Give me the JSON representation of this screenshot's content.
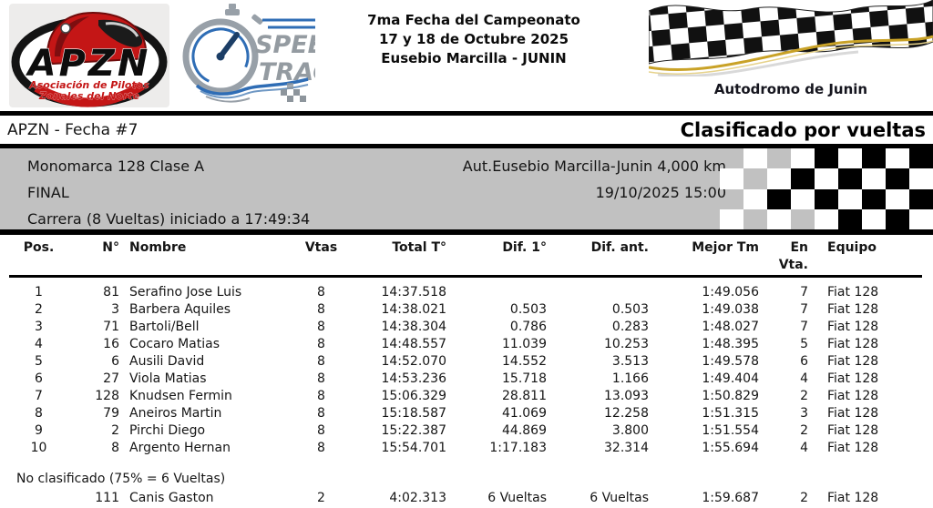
{
  "colors": {
    "banner-bg": "#c1c1c1",
    "accent-red": "#c41616",
    "gold": "#c9a227",
    "logo-blue": "#2f6db5",
    "steel-gray": "#98a0a8"
  },
  "header": {
    "apzn_logo": {
      "acronym": "APZN",
      "line1": "Asociación de Pilotos",
      "line2": "Zonales del Norte"
    },
    "speedtrack_logo": {
      "line1": "SPEED",
      "line2": "TRACK"
    },
    "event": {
      "line1": "7ma Fecha del Campeonato",
      "line2": "17 y 18 de Octubre 2025",
      "line3": "Eusebio Marcilla - JUNIN"
    },
    "venue": "Autodromo de Junin"
  },
  "title_bar": {
    "left": "APZN - Fecha #7",
    "right": "Clasificado por vueltas"
  },
  "banner": {
    "category": "Monomarca 128 Clase A",
    "track": "Aut.Eusebio Marcilla-Junin 4,000 km",
    "session": "FINAL",
    "datetime": "19/10/2025 15:00",
    "race_info": "Carrera (8 Vueltas) iniciado a 17:49:34",
    "checker_grid": [
      [
        "g",
        "w",
        "g",
        "w",
        "b",
        "w",
        "b",
        "w",
        "b"
      ],
      [
        "w",
        "g",
        "w",
        "b",
        "w",
        "b",
        "w",
        "b",
        "w"
      ],
      [
        "g",
        "w",
        "b",
        "w",
        "b",
        "w",
        "b",
        "w",
        "b"
      ],
      [
        "w",
        "g",
        "w",
        "g",
        "w",
        "b",
        "w",
        "b",
        "w"
      ]
    ]
  },
  "table": {
    "columns": [
      "Pos.",
      "N°",
      "Nombre",
      "Vtas",
      "Total T°",
      "Dif. 1°",
      "Dif. ant.",
      "Mejor Tm",
      "En Vta.",
      "Equipo"
    ],
    "rows": [
      [
        "1",
        "81",
        "Serafino Jose Luis",
        "8",
        "14:37.518",
        "",
        "",
        "1:49.056",
        "7",
        "Fiat 128"
      ],
      [
        "2",
        "3",
        "Barbera Aquiles",
        "8",
        "14:38.021",
        "0.503",
        "0.503",
        "1:49.038",
        "7",
        "Fiat 128"
      ],
      [
        "3",
        "71",
        "Bartoli/Bell",
        "8",
        "14:38.304",
        "0.786",
        "0.283",
        "1:48.027",
        "7",
        "Fiat 128"
      ],
      [
        "4",
        "16",
        "Cocaro Matias",
        "8",
        "14:48.557",
        "11.039",
        "10.253",
        "1:48.395",
        "5",
        "Fiat 128"
      ],
      [
        "5",
        "6",
        "Ausili David",
        "8",
        "14:52.070",
        "14.552",
        "3.513",
        "1:49.578",
        "6",
        "Fiat 128"
      ],
      [
        "6",
        "27",
        "Viola Matias",
        "8",
        "14:53.236",
        "15.718",
        "1.166",
        "1:49.404",
        "4",
        "Fiat 128"
      ],
      [
        "7",
        "128",
        "Knudsen Fermin",
        "8",
        "15:06.329",
        "28.811",
        "13.093",
        "1:50.829",
        "2",
        "Fiat 128"
      ],
      [
        "8",
        "79",
        "Aneiros Martin",
        "8",
        "15:18.587",
        "41.069",
        "12.258",
        "1:51.315",
        "3",
        "Fiat 128"
      ],
      [
        "9",
        "2",
        "Pirchi Diego",
        "8",
        "15:22.387",
        "44.869",
        "3.800",
        "1:51.554",
        "2",
        "Fiat 128"
      ],
      [
        "10",
        "8",
        "Argento Hernan",
        "8",
        "15:54.701",
        "1:17.183",
        "32.314",
        "1:55.694",
        "4",
        "Fiat 128"
      ]
    ],
    "nc_label": "No clasificado (75% = 6 Vueltas)",
    "nc_rows": [
      [
        "",
        "111",
        "Canis Gaston",
        "2",
        "4:02.313",
        "6 Vueltas",
        "6 Vueltas",
        "1:59.687",
        "2",
        "Fiat 128"
      ]
    ]
  }
}
